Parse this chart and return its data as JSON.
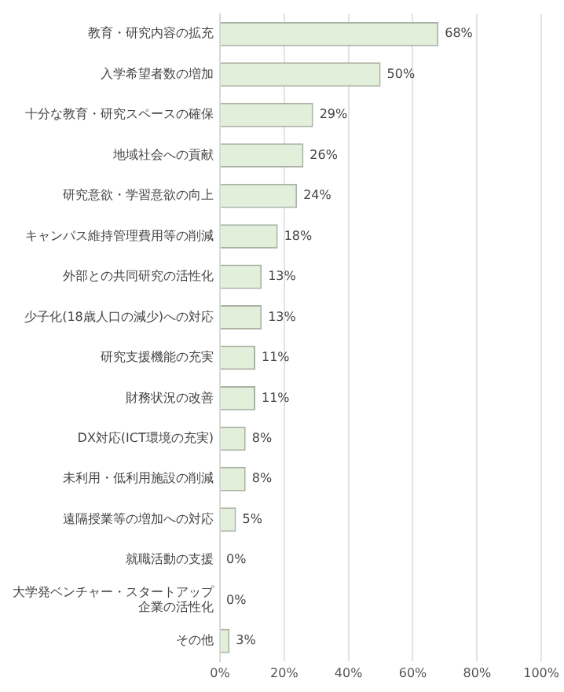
{
  "chart_data": {
    "type": "bar",
    "orientation": "horizontal",
    "categories": [
      "教育・研究内容の拡充",
      "入学希望者数の増加",
      "十分な教育・研究スペースの確保",
      "地域社会への貢献",
      "研究意欲・学習意欲の向上",
      "キャンパス維持管理費用等の削減",
      "外部との共同研究の活性化",
      "少子化(18歳人口の減少)への対応",
      "研究支援機能の充実",
      "財務状況の改善",
      "DX対応(ICT環境の充実)",
      "未利用・低利用施設の削減",
      "遠隔授業等の増加への対応",
      "就職活動の支援",
      "大学発ベンチャー・スタートアップ企業の活性化",
      "その他"
    ],
    "values": [
      68,
      50,
      29,
      26,
      24,
      18,
      13,
      13,
      11,
      11,
      8,
      8,
      5,
      0,
      0,
      3
    ],
    "value_labels": [
      "68%",
      "50%",
      "29%",
      "26%",
      "24%",
      "18%",
      "13%",
      "13%",
      "11%",
      "11%",
      "8%",
      "8%",
      "5%",
      "0%",
      "0%",
      "3%"
    ],
    "color": "#e2efda",
    "xlim": [
      0,
      100
    ],
    "xticks": [
      {
        "value": 0,
        "label": "0%"
      },
      {
        "value": 20,
        "label": "20%"
      },
      {
        "value": 40,
        "label": "40%"
      },
      {
        "value": 60,
        "label": "60%"
      },
      {
        "value": 80,
        "label": "80%"
      },
      {
        "value": 100,
        "label": "100%"
      }
    ],
    "grid": "x",
    "legend": false
  }
}
